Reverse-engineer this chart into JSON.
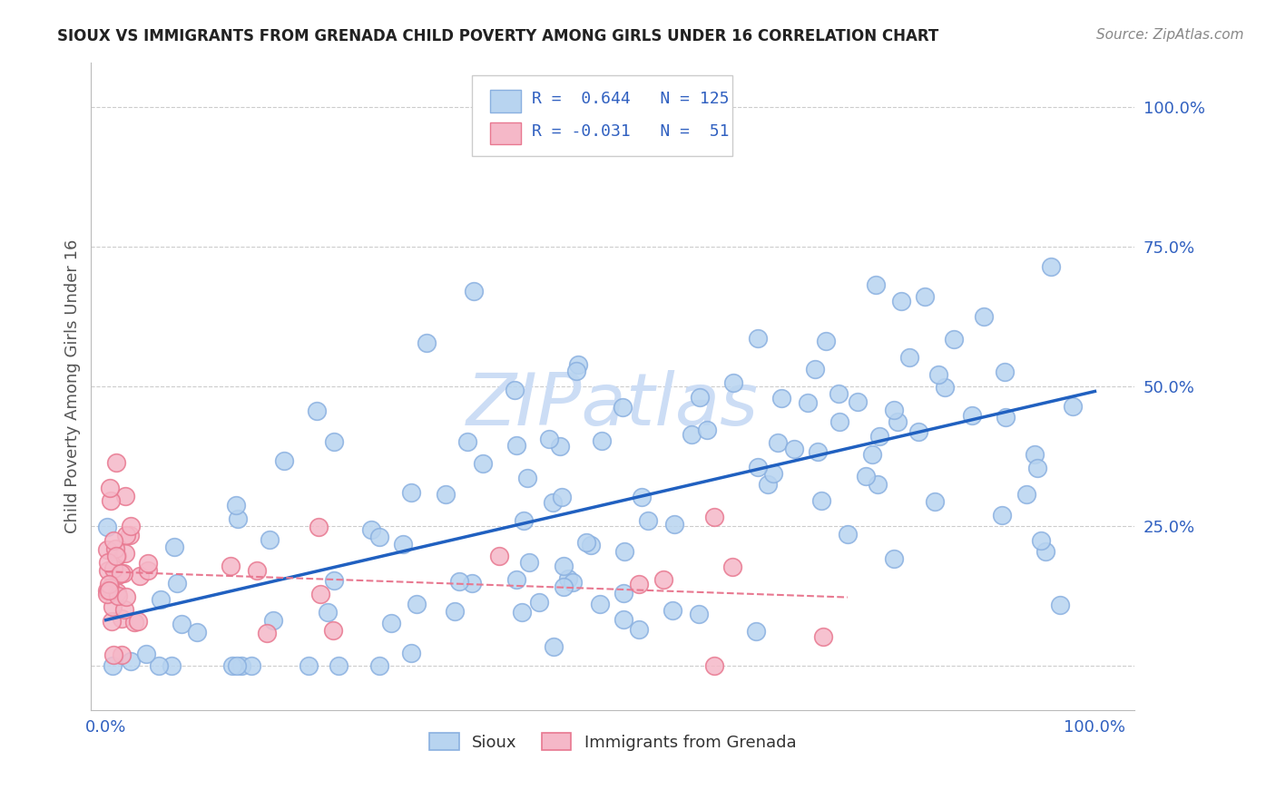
{
  "title": "SIOUX VS IMMIGRANTS FROM GRENADA CHILD POVERTY AMONG GIRLS UNDER 16 CORRELATION CHART",
  "source": "Source: ZipAtlas.com",
  "ylabel": "Child Poverty Among Girls Under 16",
  "legend_sioux_R": "0.644",
  "legend_sioux_N": "125",
  "legend_grenada_R": "-0.031",
  "legend_grenada_N": "51",
  "sioux_color": "#b8d4f0",
  "sioux_edge": "#8ab0e0",
  "grenada_color": "#f5b8c8",
  "grenada_edge": "#e87890",
  "trendline_sioux_color": "#2060c0",
  "trendline_grenada_color": "#e87890",
  "background_color": "#ffffff",
  "watermark_color": "#ccddf5",
  "grid_color": "#cccccc",
  "title_color": "#222222",
  "source_color": "#888888",
  "tick_color": "#3060c0",
  "ylabel_color": "#555555"
}
